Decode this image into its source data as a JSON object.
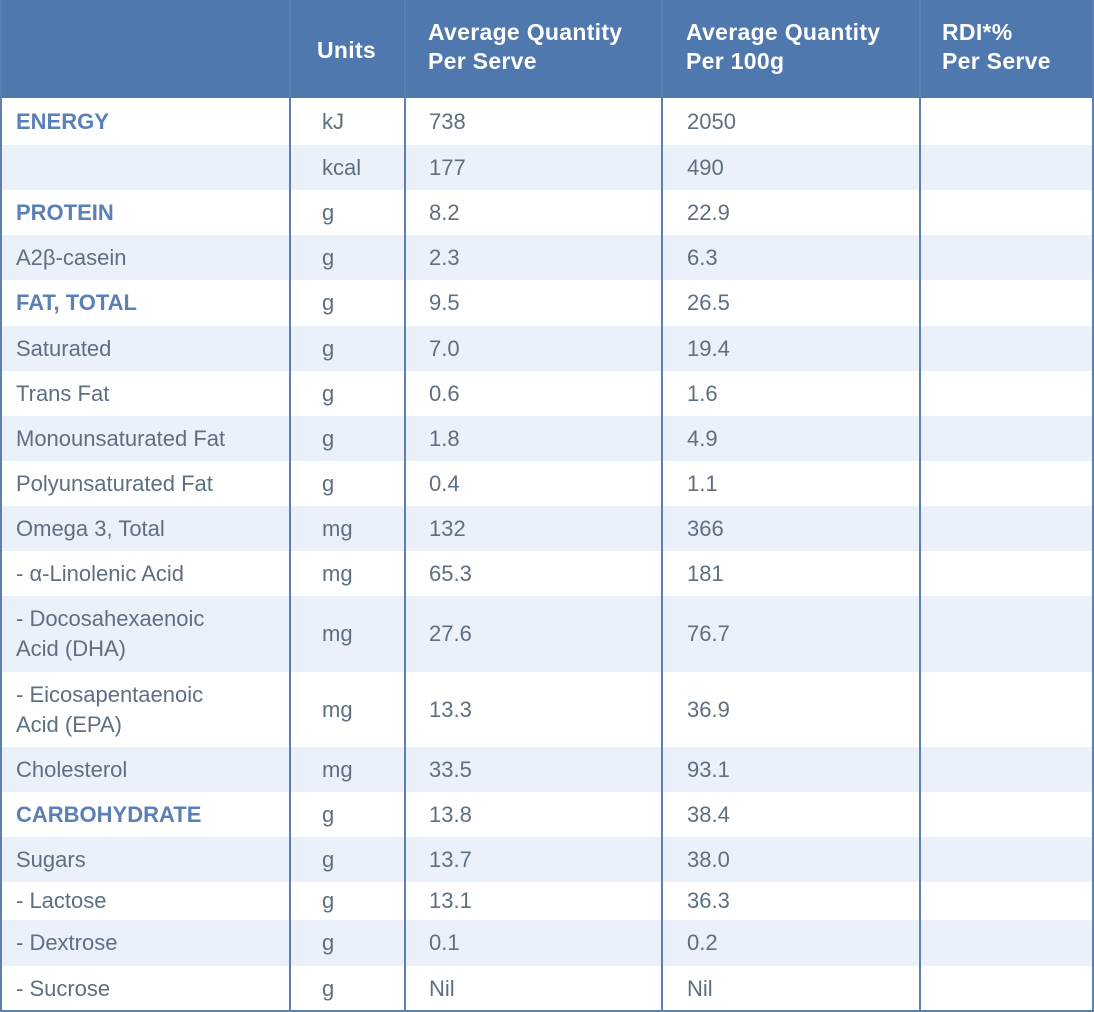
{
  "header": {
    "units": "Units",
    "per_serve": "Average Quantity\nPer Serve",
    "per_100g": "Average Quantity\nPer 100g",
    "rdi": "RDI*%\nPer Serve"
  },
  "rows": [
    {
      "nutrient": "ENERGY",
      "bold": true,
      "unit": "kJ",
      "serve": "738",
      "per100": "2050",
      "rdi": ""
    },
    {
      "nutrient": "",
      "bold": false,
      "unit": "kcal",
      "serve": "177",
      "per100": "490",
      "rdi": ""
    },
    {
      "nutrient": "PROTEIN",
      "bold": true,
      "unit": "g",
      "serve": "8.2",
      "per100": "22.9",
      "rdi": ""
    },
    {
      "nutrient": "A2β-casein",
      "bold": false,
      "unit": "g",
      "serve": "2.3",
      "per100": "6.3",
      "rdi": ""
    },
    {
      "nutrient": "FAT, TOTAL",
      "bold": true,
      "unit": "g",
      "serve": "9.5",
      "per100": "26.5",
      "rdi": ""
    },
    {
      "nutrient": "Saturated",
      "bold": false,
      "unit": "g",
      "serve": "7.0",
      "per100": "19.4",
      "rdi": ""
    },
    {
      "nutrient": "Trans Fat",
      "bold": false,
      "unit": "g",
      "serve": "0.6",
      "per100": "1.6",
      "rdi": ""
    },
    {
      "nutrient": "Monounsaturated Fat",
      "bold": false,
      "unit": "g",
      "serve": "1.8",
      "per100": "4.9",
      "rdi": ""
    },
    {
      "nutrient": "Polyunsaturated Fat",
      "bold": false,
      "unit": "g",
      "serve": "0.4",
      "per100": "1.1",
      "rdi": ""
    },
    {
      "nutrient": "Omega 3, Total",
      "bold": false,
      "unit": "mg",
      "serve": "132",
      "per100": "366",
      "rdi": ""
    },
    {
      "nutrient": " - α-Linolenic Acid",
      "bold": false,
      "unit": "mg",
      "serve": "65.3",
      "per100": "181",
      "rdi": ""
    },
    {
      "nutrient": " -  Docosahexaenoic\n    Acid (DHA)",
      "bold": false,
      "unit": "mg",
      "serve": "27.6",
      "per100": "76.7",
      "rdi": ""
    },
    {
      "nutrient": " -  Eicosapentaenoic\n    Acid (EPA)",
      "bold": false,
      "unit": "mg",
      "serve": "13.3",
      "per100": "36.9",
      "rdi": ""
    },
    {
      "nutrient": "Cholesterol",
      "bold": false,
      "unit": "mg",
      "serve": "33.5",
      "per100": "93.1",
      "rdi": ""
    },
    {
      "nutrient": "CARBOHYDRATE",
      "bold": true,
      "unit": "g",
      "serve": "13.8",
      "per100": "38.4",
      "rdi": ""
    },
    {
      "nutrient": "Sugars",
      "bold": false,
      "unit": "g",
      "serve": "13.7",
      "per100": "38.0",
      "rdi": ""
    },
    {
      "nutrient": " - Lactose",
      "bold": false,
      "unit": "g",
      "serve": "13.1",
      "per100": "36.3",
      "rdi": ""
    },
    {
      "nutrient": " - Dextrose",
      "bold": false,
      "unit": "g",
      "serve": "0.1",
      "per100": "0.2",
      "rdi": ""
    },
    {
      "nutrient": " - Sucrose",
      "bold": false,
      "unit": "g",
      "serve": "Nil",
      "per100": "Nil",
      "rdi": ""
    }
  ]
}
